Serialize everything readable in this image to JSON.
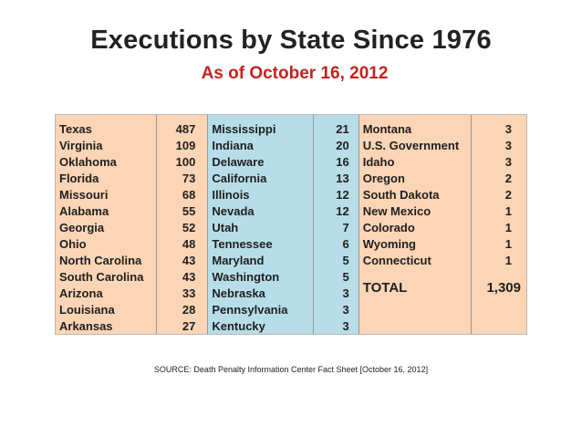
{
  "title": "Executions by State Since 1976",
  "subtitle": "As of October 16, 2012",
  "group1": [
    {
      "state": "Texas",
      "count": "487"
    },
    {
      "state": "Virginia",
      "count": "109"
    },
    {
      "state": "Oklahoma",
      "count": "100"
    },
    {
      "state": "Florida",
      "count": "73"
    },
    {
      "state": "Missouri",
      "count": "68"
    },
    {
      "state": "Alabama",
      "count": "55"
    },
    {
      "state": "Georgia",
      "count": "52"
    },
    {
      "state": "Ohio",
      "count": "48"
    },
    {
      "state": "North Carolina",
      "count": "43"
    },
    {
      "state": "South Carolina",
      "count": "43"
    },
    {
      "state": "Arizona",
      "count": "33"
    },
    {
      "state": "Louisiana",
      "count": "28"
    },
    {
      "state": "Arkansas",
      "count": "27"
    }
  ],
  "group2": [
    {
      "state": "Mississippi",
      "count": "21"
    },
    {
      "state": "Indiana",
      "count": "20"
    },
    {
      "state": "Delaware",
      "count": "16"
    },
    {
      "state": "California",
      "count": "13"
    },
    {
      "state": "Illinois",
      "count": "12"
    },
    {
      "state": "Nevada",
      "count": "12"
    },
    {
      "state": "Utah",
      "count": "7"
    },
    {
      "state": "Tennessee",
      "count": "6"
    },
    {
      "state": "Maryland",
      "count": "5"
    },
    {
      "state": "Washington",
      "count": "5"
    },
    {
      "state": "Nebraska",
      "count": "3"
    },
    {
      "state": "Pennsylvania",
      "count": "3"
    },
    {
      "state": "Kentucky",
      "count": "3"
    }
  ],
  "group3": [
    {
      "state": "Montana",
      "count": "3"
    },
    {
      "state": "U.S. Government",
      "count": "3"
    },
    {
      "state": "Idaho",
      "count": "3"
    },
    {
      "state": "Oregon",
      "count": "2"
    },
    {
      "state": "South Dakota",
      "count": "2"
    },
    {
      "state": "New Mexico",
      "count": "1"
    },
    {
      "state": "Colorado",
      "count": "1"
    },
    {
      "state": "Wyoming",
      "count": "1"
    },
    {
      "state": "Connecticut",
      "count": "1"
    }
  ],
  "total": {
    "label": "TOTAL",
    "value": "1,309"
  },
  "source": "SOURCE:  Death Penalty Information Center Fact Sheet [October 16, 2012]",
  "colors": {
    "orange": "#fbd5b5",
    "blue": "#b7dde8",
    "subtitle": "#c0241f"
  }
}
